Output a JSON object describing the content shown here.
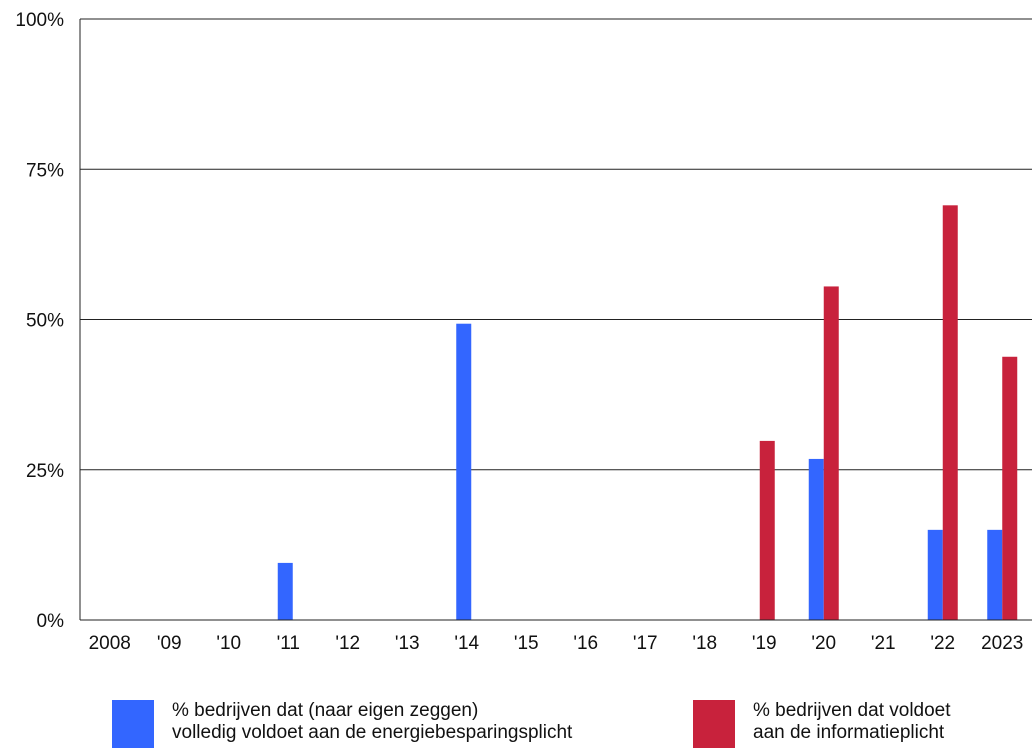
{
  "chart_data": {
    "type": "bar",
    "categories": [
      "2008",
      "'09",
      "'10",
      "'11",
      "'12",
      "'13",
      "'14",
      "'15",
      "'16",
      "'17",
      "'18",
      "'19",
      "'20",
      "'21",
      "'22",
      "2023"
    ],
    "series": [
      {
        "name_lines": [
          "% bedrijven dat (naar eigen zeggen)",
          "volledig voldoet aan de energiebesparingsplicht"
        ],
        "color": "#3366ff",
        "values": [
          null,
          null,
          null,
          9.5,
          null,
          null,
          49.3,
          null,
          null,
          null,
          null,
          null,
          26.8,
          null,
          15,
          15
        ]
      },
      {
        "name_lines": [
          "% bedrijven dat voldoet",
          "aan de informatieplicht"
        ],
        "color": "#c8223c",
        "values": [
          null,
          null,
          null,
          null,
          null,
          null,
          null,
          null,
          null,
          null,
          null,
          29.8,
          55.5,
          null,
          69,
          43.8
        ]
      }
    ],
    "y_ticks": [
      "0%",
      "25%",
      "50%",
      "75%",
      "100%"
    ],
    "ylim": [
      0,
      100
    ],
    "grid": true,
    "legend_position": "bottom"
  }
}
